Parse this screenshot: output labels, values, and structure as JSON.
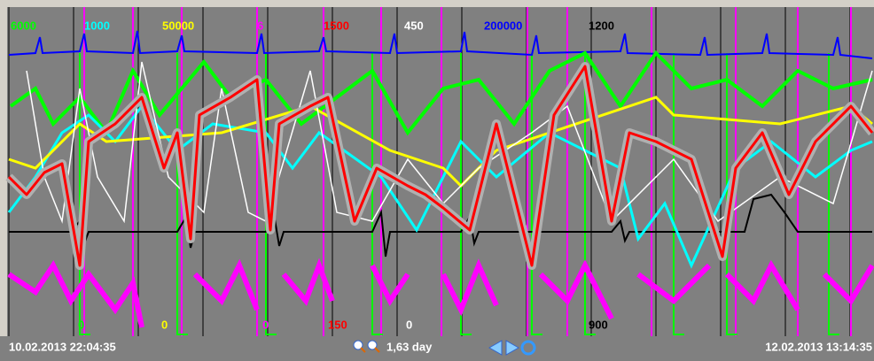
{
  "top_scale_labels": [
    {
      "text": "6000",
      "color": "#00ff00"
    },
    {
      "text": "1000",
      "color": "#00ffff"
    },
    {
      "text": "50000",
      "color": "#ffff00"
    },
    {
      "text": "6",
      "color": "#ff00ff"
    },
    {
      "text": "1500",
      "color": "#ff0000"
    },
    {
      "text": "450",
      "color": "#ffffff"
    },
    {
      "text": "200000",
      "color": "#0000ff"
    },
    {
      "text": "1200",
      "color": "#000000"
    }
  ],
  "bottom_scale_labels": [
    {
      "text": "0",
      "color": "#00ff00"
    },
    {
      "text": "0",
      "color": "#ffff00"
    },
    {
      "text": "0",
      "color": "#ff00ff"
    },
    {
      "text": "150",
      "color": "#ff0000"
    },
    {
      "text": "0",
      "color": "#ffffff"
    },
    {
      "text": "900",
      "color": "#000000"
    }
  ],
  "footer": {
    "start": "10.02.2013 22:04:35",
    "span": "1,63 day",
    "end": "12.02.2013 13:14:35"
  }
}
